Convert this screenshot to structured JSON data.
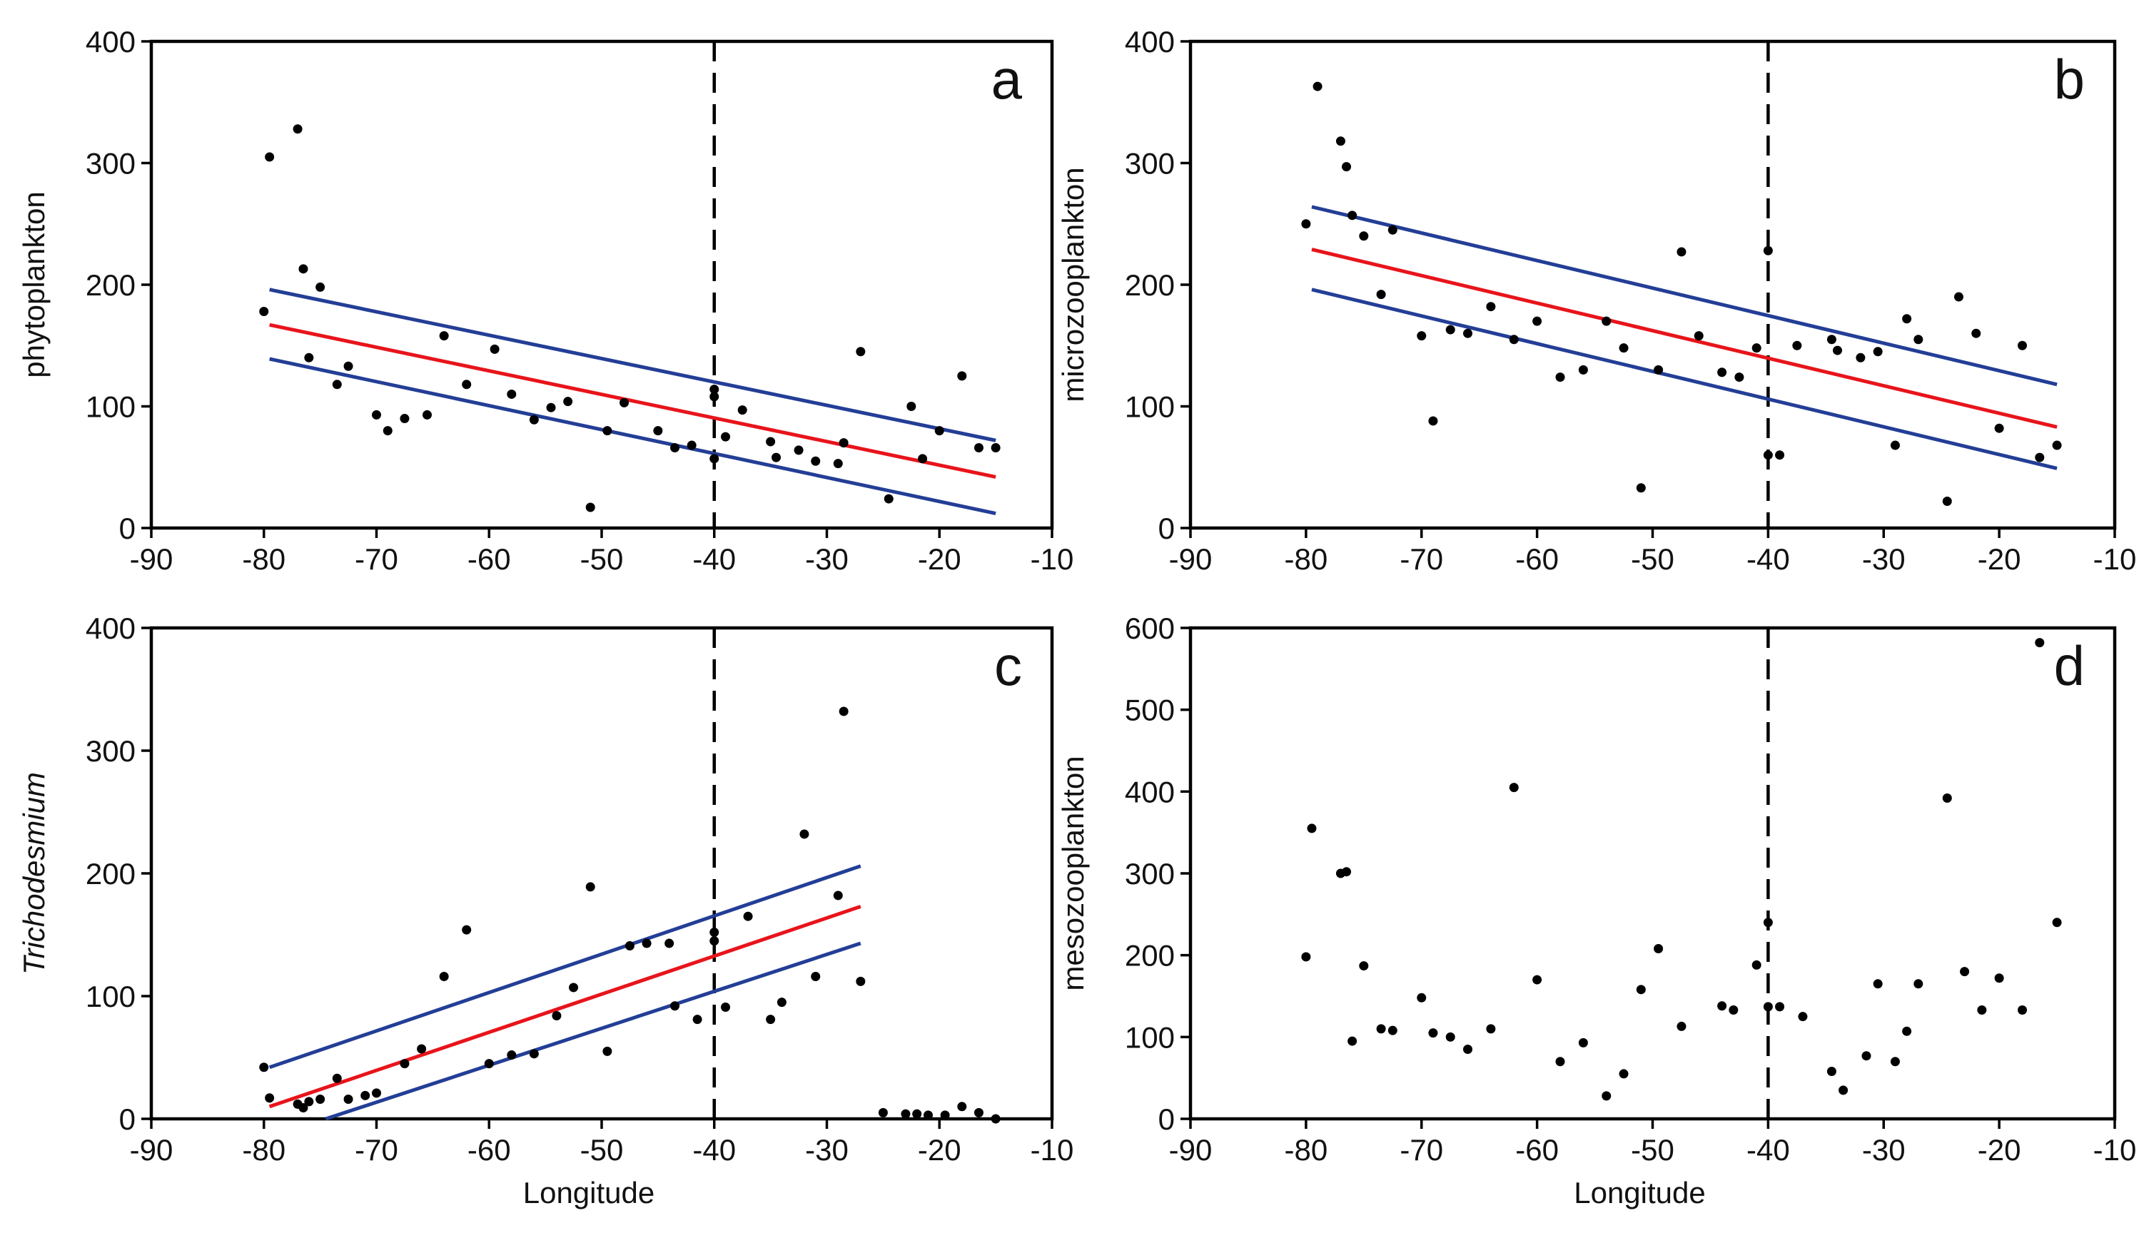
{
  "chart_data": [
    {
      "id": "a",
      "type": "scatter",
      "panel_label": "a",
      "ylabel": "phytoplankton",
      "ylabel_italic": false,
      "xlabel": "",
      "xlim": [
        -90,
        -10
      ],
      "ylim": [
        0,
        400
      ],
      "xticks": [
        -90,
        -80,
        -70,
        -60,
        -50,
        -40,
        -30,
        -20,
        -10
      ],
      "yticks": [
        0,
        100,
        200,
        300,
        400
      ],
      "reference_line_x": -40,
      "line_colors": {
        "fit": "#e8141b",
        "ci": "#233e96"
      },
      "points": [
        [
          -80,
          178
        ],
        [
          -79.5,
          305
        ],
        [
          -77,
          328
        ],
        [
          -76.5,
          213
        ],
        [
          -76,
          140
        ],
        [
          -75,
          198
        ],
        [
          -73.5,
          118
        ],
        [
          -72.5,
          133
        ],
        [
          -70,
          93
        ],
        [
          -69,
          80
        ],
        [
          -67.5,
          90
        ],
        [
          -65.5,
          93
        ],
        [
          -64,
          158
        ],
        [
          -62,
          118
        ],
        [
          -59.5,
          147
        ],
        [
          -58,
          110
        ],
        [
          -56,
          89
        ],
        [
          -54.5,
          99
        ],
        [
          -53,
          104
        ],
        [
          -51,
          17
        ],
        [
          -49.5,
          80
        ],
        [
          -48,
          103
        ],
        [
          -45,
          80
        ],
        [
          -43.5,
          66
        ],
        [
          -42,
          68
        ],
        [
          -40,
          57
        ],
        [
          -40,
          114
        ],
        [
          -40,
          108
        ],
        [
          -39,
          75
        ],
        [
          -37.5,
          97
        ],
        [
          -35,
          71
        ],
        [
          -34.5,
          58
        ],
        [
          -32.5,
          64
        ],
        [
          -31,
          55
        ],
        [
          -29,
          53
        ],
        [
          -28.5,
          70
        ],
        [
          -27,
          145
        ],
        [
          -24.5,
          24
        ],
        [
          -22.5,
          100
        ],
        [
          -21.5,
          57
        ],
        [
          -20,
          80
        ],
        [
          -18,
          125
        ],
        [
          -16.5,
          66
        ],
        [
          -15,
          66
        ]
      ],
      "fit": {
        "x": [
          -79.5,
          -15
        ],
        "y": [
          167,
          42
        ]
      },
      "ci_upper": {
        "x": [
          -79.5,
          -15
        ],
        "y": [
          196,
          72
        ]
      },
      "ci_lower": {
        "x": [
          -79.5,
          -15
        ],
        "y": [
          139,
          12
        ]
      }
    },
    {
      "id": "b",
      "type": "scatter",
      "panel_label": "b",
      "ylabel": "microzooplankton",
      "ylabel_italic": false,
      "xlabel": "",
      "xlim": [
        -90,
        -10
      ],
      "ylim": [
        0,
        400
      ],
      "xticks": [
        -90,
        -80,
        -70,
        -60,
        -50,
        -40,
        -30,
        -20,
        -10
      ],
      "yticks": [
        0,
        100,
        200,
        300,
        400
      ],
      "reference_line_x": -40,
      "line_colors": {
        "fit": "#e8141b",
        "ci": "#233e96"
      },
      "points": [
        [
          -80,
          250
        ],
        [
          -79,
          363
        ],
        [
          -77,
          318
        ],
        [
          -76.5,
          297
        ],
        [
          -76,
          257
        ],
        [
          -75,
          240
        ],
        [
          -73.5,
          192
        ],
        [
          -72.5,
          245
        ],
        [
          -70,
          158
        ],
        [
          -69,
          88
        ],
        [
          -67.5,
          163
        ],
        [
          -66,
          160
        ],
        [
          -64,
          182
        ],
        [
          -62,
          155
        ],
        [
          -60,
          170
        ],
        [
          -58,
          124
        ],
        [
          -56,
          130
        ],
        [
          -54,
          170
        ],
        [
          -52.5,
          148
        ],
        [
          -51,
          33
        ],
        [
          -49.5,
          130
        ],
        [
          -47.5,
          227
        ],
        [
          -46,
          158
        ],
        [
          -44,
          128
        ],
        [
          -42.5,
          124
        ],
        [
          -41,
          148
        ],
        [
          -40,
          228
        ],
        [
          -40,
          60
        ],
        [
          -39,
          60
        ],
        [
          -37.5,
          150
        ],
        [
          -34.5,
          155
        ],
        [
          -34,
          146
        ],
        [
          -32,
          140
        ],
        [
          -30.5,
          145
        ],
        [
          -29,
          68
        ],
        [
          -28,
          172
        ],
        [
          -27,
          155
        ],
        [
          -24.5,
          22
        ],
        [
          -23.5,
          190
        ],
        [
          -22,
          160
        ],
        [
          -20,
          82
        ],
        [
          -18,
          150
        ],
        [
          -16.5,
          58
        ],
        [
          -15,
          68
        ]
      ],
      "fit": {
        "x": [
          -79.5,
          -15
        ],
        "y": [
          229,
          83
        ]
      },
      "ci_upper": {
        "x": [
          -79.5,
          -15
        ],
        "y": [
          264,
          118
        ]
      },
      "ci_lower": {
        "x": [
          -79.5,
          -15
        ],
        "y": [
          196,
          49
        ]
      }
    },
    {
      "id": "c",
      "type": "scatter",
      "panel_label": "c",
      "ylabel": "Trichodesmium",
      "ylabel_italic": true,
      "xlabel": "Longitude",
      "xlim": [
        -90,
        -10
      ],
      "ylim": [
        0,
        400
      ],
      "xticks": [
        -90,
        -80,
        -70,
        -60,
        -50,
        -40,
        -30,
        -20,
        -10
      ],
      "yticks": [
        0,
        100,
        200,
        300,
        400
      ],
      "reference_line_x": -40,
      "line_colors": {
        "fit": "#e8141b",
        "ci": "#233e96"
      },
      "points": [
        [
          -80,
          42
        ],
        [
          -79.5,
          17
        ],
        [
          -77,
          12
        ],
        [
          -76.5,
          9
        ],
        [
          -76,
          14
        ],
        [
          -75,
          16
        ],
        [
          -73.5,
          33
        ],
        [
          -72.5,
          16
        ],
        [
          -71,
          19
        ],
        [
          -70,
          21
        ],
        [
          -67.5,
          45
        ],
        [
          -66,
          57
        ],
        [
          -64,
          116
        ],
        [
          -62,
          154
        ],
        [
          -60,
          45
        ],
        [
          -58,
          52
        ],
        [
          -56,
          53
        ],
        [
          -54,
          84
        ],
        [
          -52.5,
          107
        ],
        [
          -51,
          189
        ],
        [
          -49.5,
          55
        ],
        [
          -47.5,
          141
        ],
        [
          -46,
          143
        ],
        [
          -44,
          143
        ],
        [
          -43.5,
          92
        ],
        [
          -41.5,
          81
        ],
        [
          -40,
          145
        ],
        [
          -40,
          152
        ],
        [
          -39,
          91
        ],
        [
          -37,
          165
        ],
        [
          -35,
          81
        ],
        [
          -34,
          95
        ],
        [
          -32,
          232
        ],
        [
          -31,
          116
        ],
        [
          -29,
          182
        ],
        [
          -28.5,
          332
        ],
        [
          -27,
          112
        ],
        [
          -25,
          5
        ],
        [
          -23,
          4
        ],
        [
          -22,
          4
        ],
        [
          -21,
          3
        ],
        [
          -19.5,
          3
        ],
        [
          -18,
          10
        ],
        [
          -16.5,
          5
        ],
        [
          -15,
          0
        ]
      ],
      "fit": {
        "x": [
          -79.5,
          -27
        ],
        "y": [
          10,
          173
        ]
      },
      "ci_upper": {
        "x": [
          -79.5,
          -27
        ],
        "y": [
          42,
          206
        ]
      },
      "ci_lower": {
        "x": [
          -74.5,
          -27
        ],
        "y": [
          0,
          143
        ]
      }
    },
    {
      "id": "d",
      "type": "scatter",
      "panel_label": "d",
      "ylabel": "mesozooplankton",
      "ylabel_italic": false,
      "xlabel": "Longitude",
      "xlim": [
        -90,
        -10
      ],
      "ylim": [
        0,
        600
      ],
      "xticks": [
        -90,
        -80,
        -70,
        -60,
        -50,
        -40,
        -30,
        -20,
        -10
      ],
      "yticks": [
        0,
        100,
        200,
        300,
        400,
        500,
        600
      ],
      "reference_line_x": -40,
      "points": [
        [
          -80,
          198
        ],
        [
          -79.5,
          355
        ],
        [
          -77,
          300
        ],
        [
          -76.5,
          302
        ],
        [
          -76,
          95
        ],
        [
          -75,
          187
        ],
        [
          -73.5,
          110
        ],
        [
          -72.5,
          108
        ],
        [
          -70,
          148
        ],
        [
          -69,
          105
        ],
        [
          -67.5,
          100
        ],
        [
          -66,
          85
        ],
        [
          -64,
          110
        ],
        [
          -62,
          405
        ],
        [
          -60,
          170
        ],
        [
          -58,
          70
        ],
        [
          -56,
          93
        ],
        [
          -54,
          28
        ],
        [
          -52.5,
          55
        ],
        [
          -51,
          158
        ],
        [
          -49.5,
          208
        ],
        [
          -47.5,
          113
        ],
        [
          -44,
          138
        ],
        [
          -43,
          133
        ],
        [
          -41,
          188
        ],
        [
          -40,
          240
        ],
        [
          -40,
          137
        ],
        [
          -39,
          137
        ],
        [
          -37,
          125
        ],
        [
          -34.5,
          58
        ],
        [
          -33.5,
          35
        ],
        [
          -31.5,
          77
        ],
        [
          -30.5,
          165
        ],
        [
          -29,
          70
        ],
        [
          -28,
          107
        ],
        [
          -27,
          165
        ],
        [
          -24.5,
          392
        ],
        [
          -23,
          180
        ],
        [
          -21.5,
          133
        ],
        [
          -20,
          172
        ],
        [
          -18,
          133
        ],
        [
          -16.5,
          582
        ],
        [
          -15,
          240
        ]
      ]
    }
  ]
}
